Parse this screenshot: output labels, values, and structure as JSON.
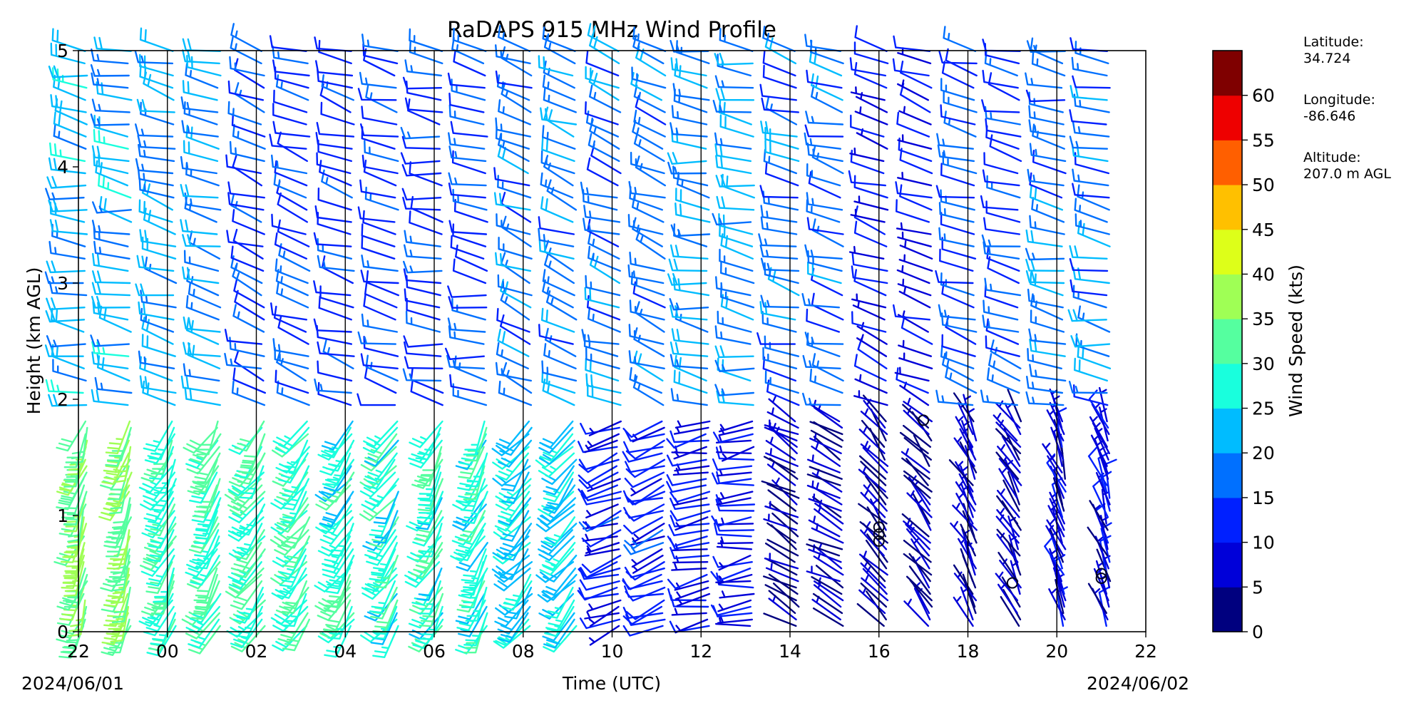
{
  "chart_data": {
    "type": "wind_barb_profile",
    "title": "RaDAPS 915 MHz Wind Profile",
    "xlabel": "Time (UTC)",
    "ylabel": "Height (km AGL)",
    "x_range_utc": [
      "2024-06-01 22:00",
      "2024-06-02 22:00"
    ],
    "x_ticks": [
      "22",
      "00",
      "02",
      "04",
      "06",
      "08",
      "10",
      "12",
      "14",
      "16",
      "18",
      "20",
      "22"
    ],
    "y_ticks": [
      "0",
      "1",
      "2",
      "3",
      "4",
      "5"
    ],
    "ylim": [
      0,
      5
    ],
    "date_start": "2024/06/01",
    "date_end": "2024/06/02",
    "colorbar": {
      "label": "Wind Speed (kts)",
      "ticks": [
        "0",
        "5",
        "10",
        "15",
        "20",
        "25",
        "30",
        "35",
        "40",
        "45",
        "50",
        "55",
        "60"
      ],
      "colors": [
        "#00007f",
        "#0000d9",
        "#0020ff",
        "#0070ff",
        "#00bcff",
        "#19ffdd",
        "#55ff9f",
        "#9fff55",
        "#ddff19",
        "#ffc000",
        "#ff5f00",
        "#ee0000",
        "#7f0000"
      ]
    },
    "profiles": [
      {
        "time": "22:00",
        "low_speed": 35,
        "low_dir": 200,
        "up_speed": 22,
        "up_dir": 280
      },
      {
        "time": "00:00",
        "low_speed": 30,
        "low_dir": 210,
        "up_speed": 20,
        "up_dir": 285
      },
      {
        "time": "02:00",
        "low_speed": 30,
        "low_dir": 215,
        "up_speed": 14,
        "up_dir": 290
      },
      {
        "time": "04:00",
        "low_speed": 28,
        "low_dir": 215,
        "up_speed": 14,
        "up_dir": 285
      },
      {
        "time": "06:00",
        "low_speed": 28,
        "low_dir": 210,
        "up_speed": 14,
        "up_dir": 280
      },
      {
        "time": "08:00",
        "low_speed": 24,
        "low_dir": 220,
        "up_speed": 18,
        "up_dir": 290
      },
      {
        "time": "10:00",
        "low_speed": 12,
        "low_dir": 250,
        "up_speed": 18,
        "up_dir": 290
      },
      {
        "time": "12:00",
        "low_speed": 10,
        "low_dir": 260,
        "up_speed": 20,
        "up_dir": 280
      },
      {
        "time": "14:00",
        "low_speed": 6,
        "low_dir": 300,
        "up_speed": 17,
        "up_dir": 285
      },
      {
        "time": "16:00",
        "low_speed": 5,
        "low_dir": 320,
        "up_speed": 10,
        "up_dir": 290
      },
      {
        "time": "18:00",
        "low_speed": 6,
        "low_dir": 330,
        "up_speed": 15,
        "up_dir": 285
      },
      {
        "time": "20:00",
        "low_speed": 8,
        "low_dir": 340,
        "up_speed": 18,
        "up_dir": 280
      }
    ],
    "calm_markers": [
      {
        "time": "16:00",
        "height_km": 0.78
      },
      {
        "time": "16:00",
        "height_km": 0.84
      },
      {
        "time": "16:00",
        "height_km": 0.9
      },
      {
        "time": "17:00",
        "height_km": 1.82
      },
      {
        "time": "19:00",
        "height_km": 0.42
      },
      {
        "time": "21:00",
        "height_km": 0.5
      },
      {
        "time": "21:00",
        "height_km": 0.46
      }
    ]
  },
  "station": {
    "latitude_label": "Latitude:",
    "latitude": "34.724",
    "longitude_label": "Longitude:",
    "longitude": "-86.646",
    "altitude_label": "Altitude:",
    "altitude": "207.0 m AGL"
  }
}
